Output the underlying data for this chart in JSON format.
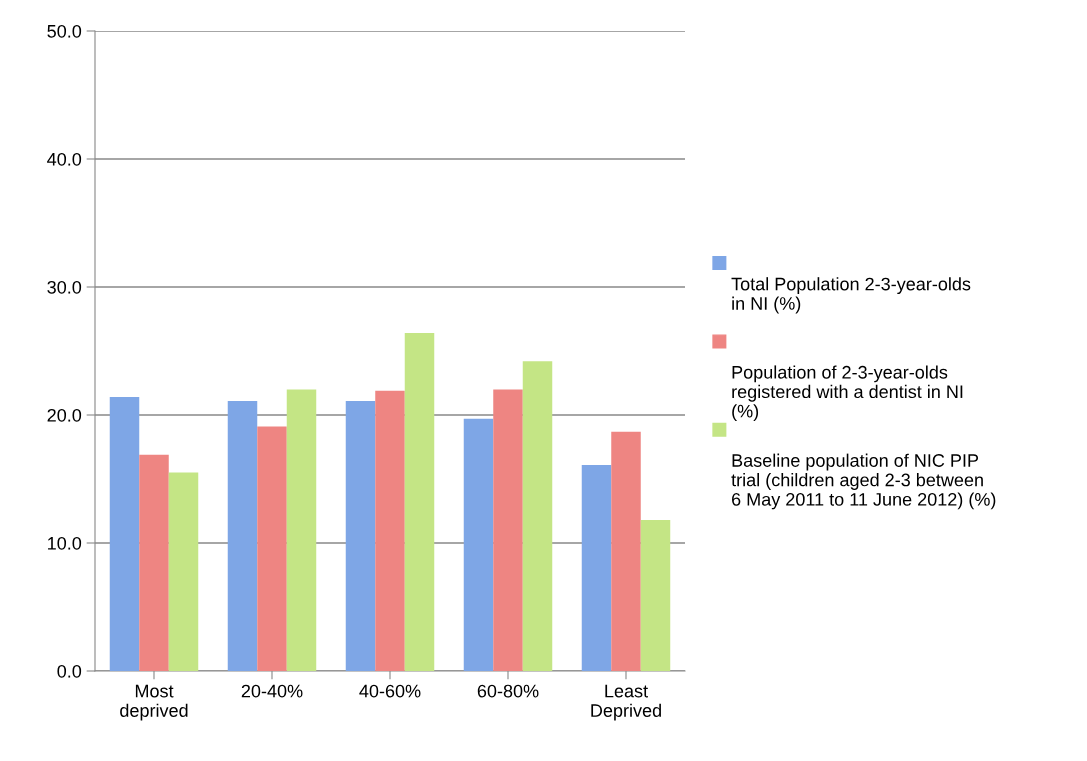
{
  "chart_data": {
    "type": "bar",
    "categories": [
      "Most\ndeprived",
      "20-40%",
      "40-60%",
      "60-80%",
      "Least\nDeprived"
    ],
    "series": [
      {
        "name": "Total Population 2-3-year-olds in NI (%)",
        "color": "#7ea6e6",
        "values": [
          21.4,
          21.1,
          21.1,
          19.7,
          16.1
        ]
      },
      {
        "name": "Population of 2-3-year-olds registered with a dentist in NI (%)",
        "color": "#ee8582",
        "values": [
          16.9,
          19.1,
          21.9,
          22.0,
          18.7
        ]
      },
      {
        "name": "Baseline population of NIC PIP trial (children aged 2-3 between 6 May 2011 to 11 June 2012) (%)",
        "color": "#c4e585",
        "values": [
          15.5,
          22.0,
          26.4,
          24.2,
          11.8
        ]
      }
    ],
    "ylim": [
      0,
      50
    ],
    "yticks": [
      {
        "value": 0,
        "label": "0.0"
      },
      {
        "value": 10,
        "label": "10.0"
      },
      {
        "value": 20,
        "label": "20.0"
      },
      {
        "value": 30,
        "label": "30.0"
      },
      {
        "value": 40,
        "label": "40.0"
      },
      {
        "value": 50,
        "label": "50.0"
      }
    ],
    "grid": "y",
    "legend": "right"
  }
}
